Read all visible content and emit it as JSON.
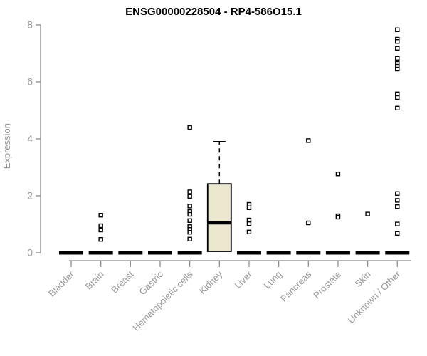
{
  "chart_data": {
    "type": "boxplot",
    "title": "ENSG00000228504 - RP4-586O15.1",
    "ylabel": "Expression",
    "xlabel": "",
    "ylim": [
      0,
      8
    ],
    "yticks": [
      0,
      2,
      4,
      6,
      8
    ],
    "grid": false,
    "legend": "none",
    "categories": [
      "Bladder",
      "Brain",
      "Breast",
      "Gastric",
      "Hematopoietic cells",
      "Kidney",
      "Liver",
      "Lung",
      "Pancreas",
      "Prostate",
      "Skin",
      "Unknown / Other"
    ],
    "boxes": [
      {
        "category": "Bladder",
        "q1": 0,
        "median": 0,
        "q3": 0,
        "whisker_low": 0,
        "whisker_high": 0,
        "outliers": []
      },
      {
        "category": "Brain",
        "q1": 0,
        "median": 0,
        "q3": 0,
        "whisker_low": 0,
        "whisker_high": 0,
        "outliers": [
          1.32,
          0.95,
          0.8,
          0.47
        ]
      },
      {
        "category": "Breast",
        "q1": 0,
        "median": 0,
        "q3": 0,
        "whisker_low": 0,
        "whisker_high": 0,
        "outliers": []
      },
      {
        "category": "Gastric",
        "q1": 0,
        "median": 0,
        "q3": 0,
        "whisker_low": 0,
        "whisker_high": 0,
        "outliers": []
      },
      {
        "category": "Hematopoietic cells",
        "q1": 0,
        "median": 0,
        "q3": 0,
        "whisker_low": 0,
        "whisker_high": 0,
        "outliers": [
          4.4,
          2.14,
          1.98,
          1.64,
          1.45,
          1.35,
          1.13,
          0.92,
          0.82,
          0.72,
          0.48
        ]
      },
      {
        "category": "Kidney",
        "q1": 0.05,
        "median": 1.05,
        "q3": 2.42,
        "whisker_low": 0.05,
        "whisker_high": 3.9,
        "outliers": []
      },
      {
        "category": "Liver",
        "q1": 0,
        "median": 0,
        "q3": 0,
        "whisker_low": 0,
        "whisker_high": 0,
        "outliers": [
          1.7,
          1.58,
          1.15,
          1.02,
          0.73
        ]
      },
      {
        "category": "Lung",
        "q1": 0,
        "median": 0,
        "q3": 0,
        "whisker_low": 0,
        "whisker_high": 0,
        "outliers": []
      },
      {
        "category": "Pancreas",
        "q1": 0,
        "median": 0,
        "q3": 0,
        "whisker_low": 0,
        "whisker_high": 0,
        "outliers": [
          3.94,
          1.05
        ]
      },
      {
        "category": "Prostate",
        "q1": 0,
        "median": 0,
        "q3": 0,
        "whisker_low": 0,
        "whisker_high": 0,
        "outliers": [
          2.77,
          1.3,
          1.25
        ]
      },
      {
        "category": "Skin",
        "q1": 0,
        "median": 0,
        "q3": 0,
        "whisker_low": 0,
        "whisker_high": 0,
        "outliers": [
          1.36
        ]
      },
      {
        "category": "Unknown / Other",
        "q1": 0,
        "median": 0,
        "q3": 0,
        "whisker_low": 0,
        "whisker_high": 0,
        "outliers": [
          7.83,
          7.5,
          7.42,
          7.18,
          6.83,
          6.65,
          6.55,
          6.45,
          5.58,
          5.45,
          5.08,
          2.08,
          1.84,
          1.62,
          1.01,
          0.68
        ]
      }
    ],
    "colors": {
      "box_fill": "#ECE8D0",
      "box_border": "#000000",
      "median": "#000000",
      "flat_bar": "#000000",
      "outlier_stroke": "#000000",
      "outlier_fill": "#ffffff",
      "axis": "#8c8c8c",
      "tick_label": "#999999",
      "title": "#000000"
    }
  }
}
